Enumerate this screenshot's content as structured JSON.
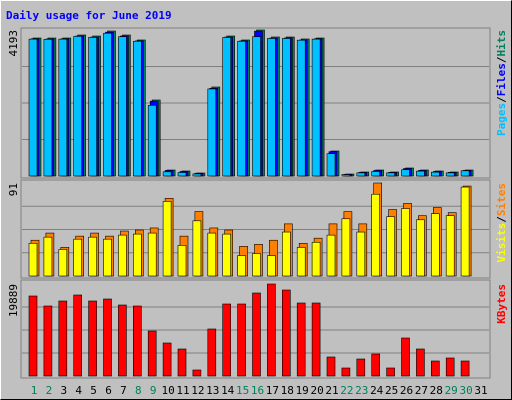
{
  "chart_data": [
    {
      "type": "bar",
      "title": "Daily usage for June 2019",
      "title_color": "#0000ff",
      "ylim": [
        0,
        4193
      ],
      "yticks": [
        4193
      ],
      "legend_separator": "/",
      "series": [
        {
          "name": "Hits",
          "color": "#00805c",
          "values": [
            3963,
            3963,
            3963,
            4049,
            4020,
            4164,
            4049,
            3906,
            2183,
            172,
            144,
            86,
            2556,
            4020,
            3906,
            4193,
            3992,
            3992,
            3935,
            3963,
            718,
            57,
            115,
            172,
            115,
            230,
            172,
            144,
            115,
            172,
            0
          ]
        },
        {
          "name": "Files",
          "color": "#0000ff",
          "values": [
            3940,
            3935,
            3940,
            4020,
            3990,
            4130,
            4020,
            3880,
            2150,
            160,
            130,
            80,
            2520,
            3990,
            3880,
            4160,
            3960,
            3965,
            3905,
            3940,
            700,
            50,
            105,
            160,
            105,
            215,
            160,
            130,
            105,
            160,
            0
          ]
        },
        {
          "name": "Pages",
          "color": "#00c0ff",
          "values": [
            3930,
            3925,
            3930,
            4010,
            3980,
            4100,
            4000,
            3870,
            2030,
            120,
            100,
            60,
            2500,
            3980,
            3870,
            4000,
            3950,
            3950,
            3900,
            3930,
            640,
            40,
            90,
            130,
            90,
            180,
            140,
            110,
            90,
            150,
            0
          ]
        }
      ]
    },
    {
      "type": "bar",
      "ylim": [
        0,
        91
      ],
      "yticks": [
        91
      ],
      "legend_separator": "/",
      "series": [
        {
          "name": "Sites",
          "color": "#ff8000",
          "values": [
            35,
            42,
            28,
            39,
            42,
            39,
            44,
            45,
            47,
            76,
            39,
            63,
            47,
            45,
            29,
            31,
            35,
            51,
            32,
            37,
            51,
            63,
            51,
            91,
            65,
            71,
            59,
            67,
            62,
            88,
            0
          ]
        },
        {
          "name": "Visits",
          "color": "#ffff00",
          "values": [
            32,
            38,
            26,
            36,
            38,
            36,
            40,
            41,
            42,
            73,
            30,
            54,
            42,
            41,
            20,
            22,
            20,
            43,
            28,
            33,
            40,
            56,
            43,
            80,
            58,
            66,
            55,
            61,
            59,
            87,
            0
          ]
        }
      ]
    },
    {
      "type": "bar",
      "ylim": [
        0,
        19889
      ],
      "yticks": [
        19889
      ],
      "categories": [
        "1",
        "2",
        "3",
        "4",
        "5",
        "6",
        "7",
        "8",
        "9",
        "10",
        "11",
        "12",
        "13",
        "14",
        "15",
        "16",
        "17",
        "18",
        "19",
        "20",
        "21",
        "22",
        "23",
        "24",
        "25",
        "26",
        "27",
        "28",
        "29",
        "30",
        "31"
      ],
      "label_colors": [
        "#00805c",
        "#00805c",
        "#000000",
        "#000000",
        "#000000",
        "#000000",
        "#000000",
        "#00805c",
        "#00805c",
        "#000000",
        "#000000",
        "#000000",
        "#000000",
        "#000000",
        "#00805c",
        "#00805c",
        "#000000",
        "#000000",
        "#000000",
        "#000000",
        "#000000",
        "#00805c",
        "#00805c",
        "#000000",
        "#000000",
        "#000000",
        "#000000",
        "#000000",
        "#00805c",
        "#00805c",
        "#000000"
      ],
      "series": [
        {
          "name": "KBytes",
          "color": "#ff0000",
          "values": [
            17295,
            15133,
            16214,
            17511,
            16214,
            16646,
            15349,
            15133,
            9728,
            7134,
            5837,
            1297,
            10161,
            15565,
            15565,
            17943,
            19889,
            18592,
            15781,
            15781,
            4107,
            1729,
            3675,
            4756,
            1729,
            8215,
            5837,
            3243,
            3891,
            3243,
            0
          ]
        }
      ]
    }
  ]
}
